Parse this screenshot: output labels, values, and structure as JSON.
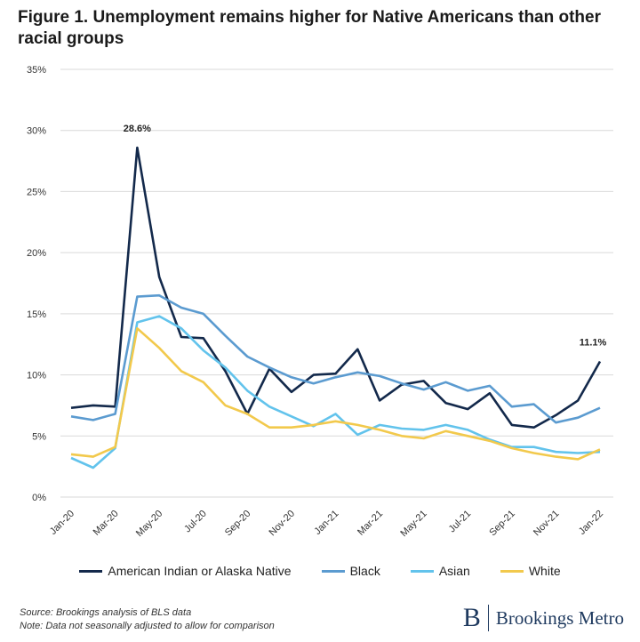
{
  "chart_data": {
    "type": "line",
    "title": "Figure 1. Unemployment remains higher for Native Americans than other racial groups",
    "xlabel": "",
    "ylabel": "",
    "ylim": [
      0,
      35
    ],
    "yticks": [
      "0%",
      "5%",
      "10%",
      "15%",
      "20%",
      "25%",
      "30%",
      "35%"
    ],
    "grid": true,
    "legend_position": "bottom",
    "categories": [
      "Jan-20",
      "Feb-20",
      "Mar-20",
      "Apr-20",
      "May-20",
      "Jun-20",
      "Jul-20",
      "Aug-20",
      "Sep-20",
      "Oct-20",
      "Nov-20",
      "Dec-20",
      "Jan-21",
      "Feb-21",
      "Mar-21",
      "Apr-21",
      "May-21",
      "Jun-21",
      "Jul-21",
      "Aug-21",
      "Sep-21",
      "Oct-21",
      "Nov-21",
      "Dec-21",
      "Jan-22"
    ],
    "xtick_labels": [
      "Jan-20",
      "Mar-20",
      "May-20",
      "Jul-20",
      "Sep-20",
      "Nov-20",
      "Jan-21",
      "Mar-21",
      "May-21",
      "Jul-21",
      "Sep-21",
      "Nov-21",
      "Jan-22"
    ],
    "series": [
      {
        "name": "American Indian or Alaska Native",
        "color": "#13294b",
        "values": [
          7.3,
          7.5,
          7.4,
          28.6,
          18.0,
          13.1,
          13.0,
          10.3,
          6.8,
          10.5,
          8.6,
          10.0,
          10.1,
          12.1,
          7.9,
          9.2,
          9.5,
          7.7,
          7.2,
          8.5,
          5.9,
          5.7,
          6.7,
          7.9,
          11.1
        ]
      },
      {
        "name": "Black",
        "color": "#5b9bd0",
        "values": [
          6.6,
          6.3,
          6.8,
          16.4,
          16.5,
          15.5,
          15.0,
          13.2,
          11.5,
          10.6,
          9.8,
          9.3,
          9.8,
          10.2,
          9.9,
          9.3,
          8.8,
          9.4,
          8.7,
          9.1,
          7.4,
          7.6,
          6.1,
          6.5,
          7.3
        ]
      },
      {
        "name": "Asian",
        "color": "#62c3ec",
        "values": [
          3.2,
          2.4,
          4.0,
          14.3,
          14.8,
          13.8,
          12.0,
          10.6,
          8.7,
          7.4,
          6.6,
          5.8,
          6.8,
          5.1,
          5.9,
          5.6,
          5.5,
          5.9,
          5.5,
          4.7,
          4.1,
          4.1,
          3.7,
          3.6,
          3.7
        ]
      },
      {
        "name": "White",
        "color": "#f2c94c",
        "values": [
          3.5,
          3.3,
          4.1,
          13.8,
          12.2,
          10.3,
          9.4,
          7.5,
          6.8,
          5.7,
          5.7,
          5.9,
          6.2,
          5.9,
          5.5,
          5.0,
          4.8,
          5.4,
          5.0,
          4.6,
          4.0,
          3.6,
          3.3,
          3.1,
          3.9
        ]
      }
    ],
    "annotations": [
      {
        "label": "28.6%",
        "series": 0,
        "x": "Apr-20"
      },
      {
        "label": "11.1%",
        "series": 0,
        "x": "Jan-22"
      }
    ]
  },
  "footer": {
    "source": "Source: Brookings analysis of BLS data",
    "note": "Note: Data not seasonally adjusted to allow for comparison",
    "logo_letter": "B",
    "logo_text": "Brookings Metro"
  }
}
